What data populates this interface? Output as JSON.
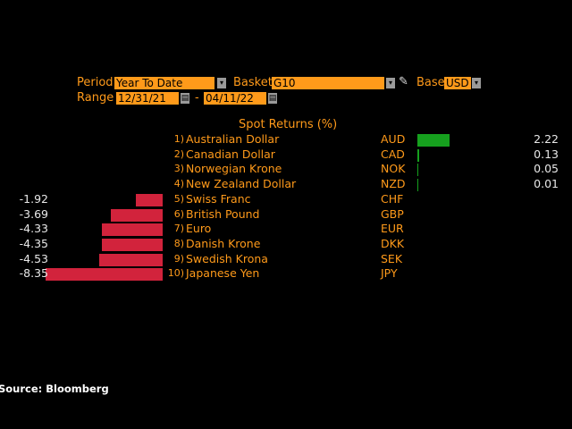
{
  "controls": {
    "period_label": "Period",
    "period_value": "Year To Date",
    "basket_label": "Basket",
    "basket_value": "G10",
    "base_label": "Base",
    "base_value": "USD",
    "range_label": "Range",
    "range_start": "12/31/21",
    "range_sep": "-",
    "range_end": "04/11/22",
    "dropdown_glyph": "▾",
    "edit_glyph": "✎",
    "calendar_glyph": "▤"
  },
  "colors": {
    "positive": "#16a01e",
    "negative": "#d2233c",
    "accent": "#ff9a1a"
  },
  "chart_data": {
    "type": "bar",
    "orientation": "horizontal",
    "title": "Spot Returns (%)",
    "rows": [
      {
        "rank": "1)",
        "name": "Australian Dollar",
        "code": "AUD",
        "value": 2.22,
        "label": "2.22"
      },
      {
        "rank": "2)",
        "name": "Canadian Dollar",
        "code": "CAD",
        "value": 0.13,
        "label": "0.13"
      },
      {
        "rank": "3)",
        "name": "Norwegian Krone",
        "code": "NOK",
        "value": 0.05,
        "label": "0.05"
      },
      {
        "rank": "4)",
        "name": "New Zealand Dollar",
        "code": "NZD",
        "value": 0.01,
        "label": "0.01"
      },
      {
        "rank": "5)",
        "name": "Swiss Franc",
        "code": "CHF",
        "value": -1.92,
        "label": "-1.92"
      },
      {
        "rank": "6)",
        "name": "British Pound",
        "code": "GBP",
        "value": -3.69,
        "label": "-3.69"
      },
      {
        "rank": "7)",
        "name": "Euro",
        "code": "EUR",
        "value": -4.33,
        "label": "-4.33"
      },
      {
        "rank": "8)",
        "name": "Danish Krone",
        "code": "DKK",
        "value": -4.35,
        "label": "-4.35"
      },
      {
        "rank": "9)",
        "name": "Swedish Krona",
        "code": "SEK",
        "value": -4.53,
        "label": "-4.53"
      },
      {
        "rank": "10)",
        "name": "Japanese Yen",
        "code": "JPY",
        "value": -8.35,
        "label": "-8.35"
      }
    ]
  },
  "source": "Source: Bloomberg"
}
